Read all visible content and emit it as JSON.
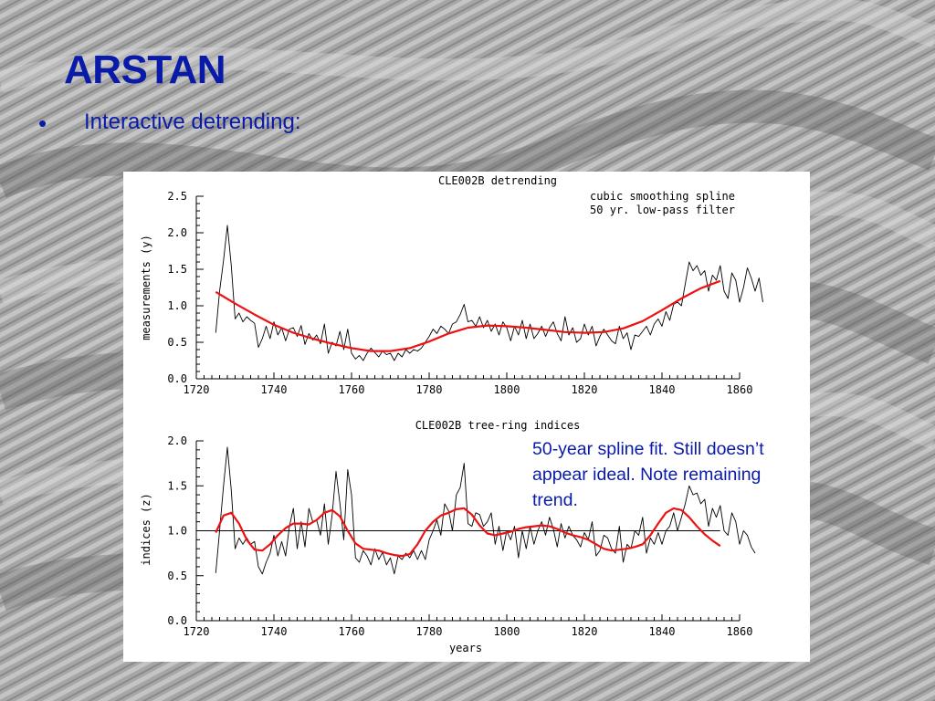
{
  "slide": {
    "title": "ARSTAN",
    "bullet_symbol": "•",
    "bullet_text": "Interactive detrending:",
    "note": "50-year spline fit. Still doesn’t appear ideal. Note remaining trend."
  },
  "colors": {
    "title": "#0a1aa8",
    "series_raw": "#000000",
    "series_spline": "#ee1111"
  },
  "chart_data": [
    {
      "type": "line",
      "title": "CLE002B detrending",
      "annotation": [
        "cubic smoothing spline",
        "50 yr. low-pass filter"
      ],
      "xlabel": "",
      "ylabel": "measurements (y)",
      "xlim": [
        1720,
        1860
      ],
      "ylim": [
        0.0,
        2.5
      ],
      "xticks": [
        "1720",
        "1740",
        "1760",
        "1780",
        "1800",
        "1820",
        "1840",
        "1860"
      ],
      "yticks": [
        "0.0",
        "0.5",
        "1.0",
        "1.5",
        "2.0",
        "2.5"
      ],
      "grid": false,
      "series": [
        {
          "role": "raw",
          "x_start": 1725,
          "values": [
            0.63,
            1.2,
            1.62,
            2.1,
            1.55,
            0.82,
            0.9,
            0.78,
            0.85,
            0.8,
            0.76,
            0.43,
            0.55,
            0.72,
            0.55,
            0.78,
            0.6,
            0.7,
            0.52,
            0.68,
            0.7,
            0.58,
            0.73,
            0.47,
            0.62,
            0.53,
            0.6,
            0.48,
            0.75,
            0.35,
            0.5,
            0.45,
            0.65,
            0.4,
            0.68,
            0.35,
            0.27,
            0.32,
            0.25,
            0.35,
            0.42,
            0.36,
            0.3,
            0.38,
            0.33,
            0.35,
            0.25,
            0.35,
            0.3,
            0.4,
            0.35,
            0.4,
            0.38,
            0.42,
            0.5,
            0.58,
            0.68,
            0.62,
            0.72,
            0.68,
            0.62,
            0.75,
            0.78,
            0.88,
            1.02,
            0.78,
            0.8,
            0.72,
            0.85,
            0.7,
            0.8,
            0.65,
            0.75,
            0.6,
            0.78,
            0.7,
            0.52,
            0.72,
            0.6,
            0.8,
            0.55,
            0.75,
            0.55,
            0.62,
            0.72,
            0.58,
            0.7,
            0.78,
            0.62,
            0.52,
            0.85,
            0.6,
            0.7,
            0.5,
            0.55,
            0.75,
            0.6,
            0.72,
            0.45,
            0.58,
            0.68,
            0.6,
            0.52,
            0.48,
            0.72,
            0.55,
            0.63,
            0.4,
            0.6,
            0.58,
            0.65,
            0.72,
            0.6,
            0.75,
            0.82,
            0.72,
            0.92,
            0.8,
            1.02,
            1.05,
            1.0,
            1.3,
            1.6,
            1.48,
            1.55,
            1.42,
            1.48,
            1.2,
            1.42,
            1.35,
            1.55,
            1.2,
            1.1,
            1.45,
            1.35,
            1.05,
            1.25,
            1.52,
            1.38,
            1.2,
            1.38,
            1.05
          ]
        },
        {
          "role": "spline",
          "x": [
            1725,
            1730,
            1735,
            1740,
            1745,
            1750,
            1755,
            1760,
            1765,
            1770,
            1775,
            1780,
            1785,
            1790,
            1795,
            1800,
            1805,
            1810,
            1815,
            1820,
            1825,
            1830,
            1835,
            1840,
            1845,
            1850,
            1855
          ],
          "values": [
            1.19,
            1.03,
            0.88,
            0.74,
            0.63,
            0.55,
            0.48,
            0.42,
            0.38,
            0.38,
            0.42,
            0.51,
            0.62,
            0.7,
            0.73,
            0.72,
            0.7,
            0.67,
            0.64,
            0.63,
            0.64,
            0.69,
            0.79,
            0.94,
            1.1,
            1.24,
            1.34
          ]
        }
      ]
    },
    {
      "type": "line",
      "title": "CLE002B tree-ring indices",
      "xlabel": "years",
      "ylabel": "indices (z)",
      "xlim": [
        1720,
        1860
      ],
      "ylim": [
        0.0,
        2.0
      ],
      "xticks": [
        "1720",
        "1740",
        "1760",
        "1780",
        "1800",
        "1820",
        "1840",
        "1860"
      ],
      "yticks": [
        "0.0",
        "0.5",
        "1.0",
        "1.5",
        "2.0"
      ],
      "reference_line": 1.0,
      "grid": false,
      "series": [
        {
          "role": "raw",
          "x_start": 1725,
          "values": [
            0.53,
            1.0,
            1.5,
            1.93,
            1.45,
            0.8,
            0.92,
            0.85,
            0.92,
            0.85,
            0.88,
            0.6,
            0.52,
            0.65,
            0.75,
            0.95,
            0.72,
            0.88,
            0.72,
            1.05,
            1.25,
            0.8,
            1.1,
            0.82,
            1.25,
            1.1,
            1.12,
            0.95,
            1.3,
            0.85,
            1.18,
            1.66,
            1.3,
            0.9,
            1.68,
            1.4,
            0.7,
            0.65,
            0.78,
            0.72,
            0.62,
            0.8,
            0.68,
            0.76,
            0.62,
            0.7,
            0.52,
            0.72,
            0.68,
            0.75,
            0.7,
            0.78,
            0.68,
            0.78,
            0.68,
            0.9,
            1.0,
            1.12,
            0.95,
            1.3,
            1.22,
            1.0,
            1.4,
            1.48,
            1.75,
            1.08,
            1.05,
            1.2,
            1.18,
            1.05,
            1.1,
            1.2,
            0.85,
            1.05,
            0.78,
            1.0,
            0.9,
            1.05,
            0.7,
            1.0,
            0.8,
            1.05,
            0.85,
            1.0,
            1.1,
            0.95,
            1.15,
            1.02,
            0.82,
            1.08,
            0.92,
            1.05,
            0.95,
            0.9,
            0.82,
            0.98,
            0.9,
            1.1,
            0.72,
            0.78,
            0.95,
            0.92,
            0.8,
            0.75,
            1.05,
            0.65,
            0.85,
            0.8,
            1.0,
            0.95,
            1.15,
            0.75,
            0.92,
            0.85,
            0.98,
            0.85,
            1.0,
            1.05,
            1.2,
            1.0,
            1.15,
            1.3,
            1.5,
            1.4,
            1.42,
            1.3,
            1.35,
            1.05,
            1.25,
            1.15,
            1.28,
            1.0,
            0.95,
            1.2,
            1.1,
            0.85,
            1.0,
            0.95,
            0.82,
            0.75
          ]
        },
        {
          "role": "spline",
          "x": [
            1725,
            1727,
            1729,
            1731,
            1733,
            1735,
            1737,
            1739,
            1741,
            1743,
            1745,
            1747,
            1749,
            1751,
            1753,
            1755,
            1757,
            1759,
            1761,
            1763,
            1765,
            1767,
            1769,
            1771,
            1773,
            1775,
            1777,
            1779,
            1781,
            1783,
            1785,
            1787,
            1789,
            1791,
            1793,
            1795,
            1797,
            1799,
            1801,
            1803,
            1805,
            1807,
            1809,
            1811,
            1813,
            1815,
            1817,
            1819,
            1821,
            1823,
            1825,
            1827,
            1829,
            1831,
            1833,
            1835,
            1837,
            1839,
            1841,
            1843,
            1845,
            1847,
            1849,
            1851,
            1853,
            1855
          ],
          "values": [
            0.98,
            1.17,
            1.2,
            1.08,
            0.9,
            0.79,
            0.78,
            0.85,
            0.95,
            1.03,
            1.08,
            1.08,
            1.07,
            1.12,
            1.2,
            1.23,
            1.16,
            1.0,
            0.86,
            0.8,
            0.79,
            0.78,
            0.75,
            0.73,
            0.72,
            0.74,
            0.85,
            1.0,
            1.1,
            1.17,
            1.2,
            1.24,
            1.25,
            1.18,
            1.06,
            0.97,
            0.95,
            0.97,
            0.99,
            1.02,
            1.04,
            1.05,
            1.06,
            1.05,
            1.02,
            0.98,
            0.95,
            0.93,
            0.9,
            0.85,
            0.8,
            0.78,
            0.79,
            0.8,
            0.82,
            0.85,
            0.95,
            1.08,
            1.2,
            1.25,
            1.23,
            1.15,
            1.05,
            0.96,
            0.89,
            0.83
          ]
        }
      ]
    }
  ]
}
